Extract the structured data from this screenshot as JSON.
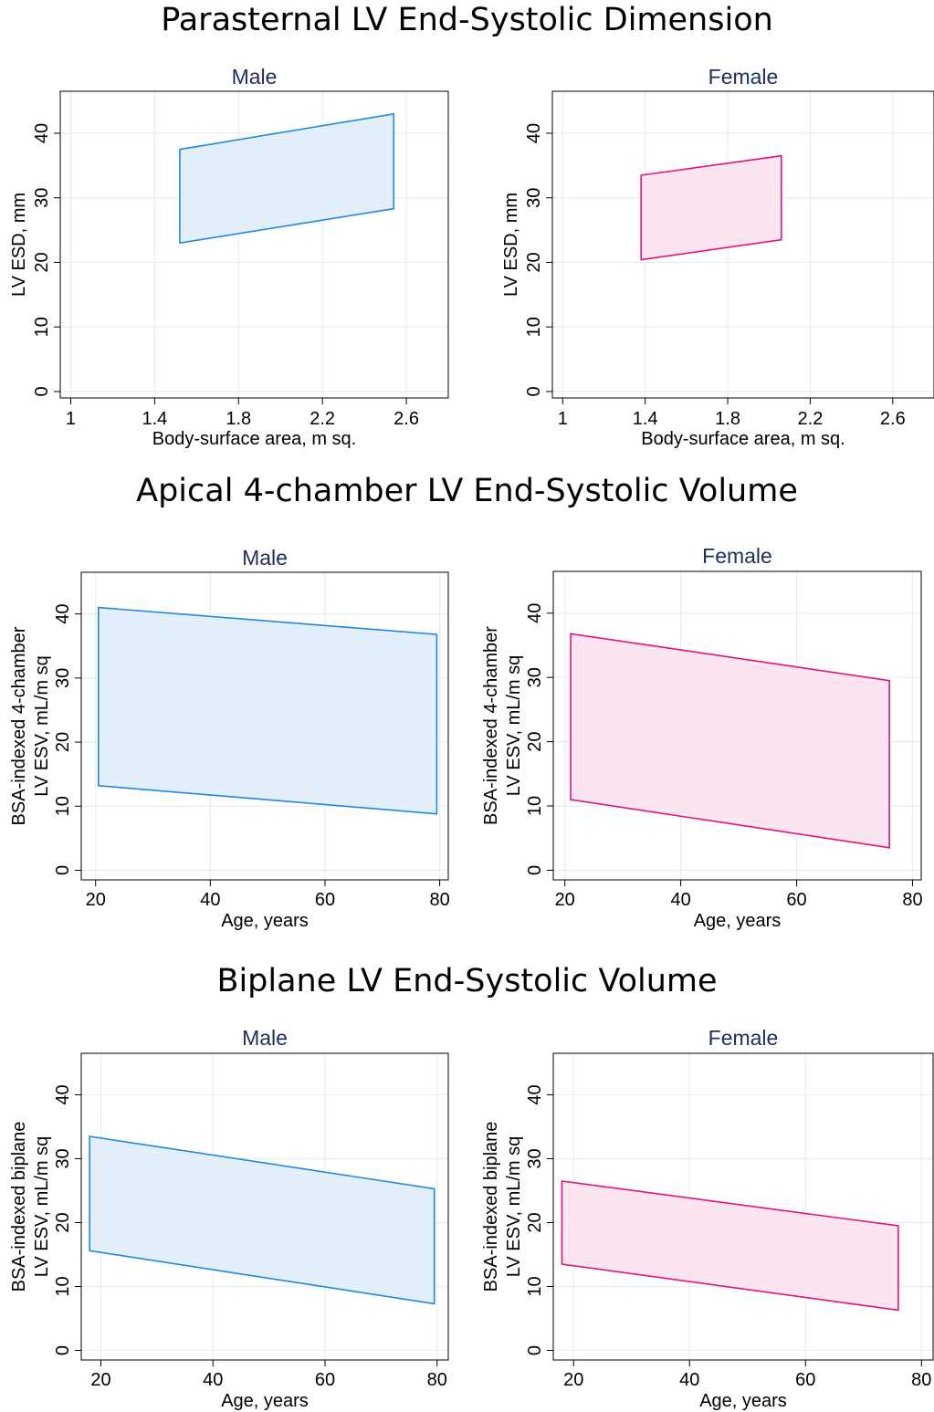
{
  "section_titles": [
    "Parasternal LV End-Systolic Dimension",
    "Apical 4-chamber LV End-Systolic Volume",
    "Biplane LV End-Systolic Volume"
  ],
  "colors": {
    "male_stroke": "#1e88e5",
    "male_fill": "#e3f0fc",
    "female_stroke": "#e0157a",
    "female_fill": "#fde4f1",
    "panel_title": "#1f2d5a",
    "grid": "#e7eef2"
  },
  "chart_data": [
    {
      "type": "area",
      "title": "Male",
      "xlabel": "Body-surface area, m sq.",
      "ylabel": [
        "LV ESD, mm"
      ],
      "xlim": [
        0.95,
        2.8
      ],
      "ylim": [
        -1,
        46.5
      ],
      "xticks": [
        1,
        1.4,
        1.8,
        2.2,
        2.6
      ],
      "xtick_labels": [
        "1",
        "1.4",
        "1.8",
        "2.2",
        "2.6"
      ],
      "yticks": [
        0,
        10,
        20,
        30,
        40
      ],
      "ytick_labels": [
        "0",
        "10",
        "20",
        "30",
        "40"
      ],
      "x": [
        1.52,
        2.54
      ],
      "series": [
        {
          "upper": [
            37.5,
            43.0
          ],
          "lower": [
            23.0,
            28.3
          ]
        }
      ],
      "color": "male"
    },
    {
      "type": "area",
      "title": "Female",
      "xlabel": "Body-surface area, m sq.",
      "ylabel": [
        "LV ESD, mm"
      ],
      "xlim": [
        0.95,
        2.8
      ],
      "ylim": [
        -1,
        46.5
      ],
      "xticks": [
        1,
        1.4,
        1.8,
        2.2,
        2.6
      ],
      "xtick_labels": [
        "1",
        "1.4",
        "1.8",
        "2.2",
        "2.6"
      ],
      "yticks": [
        0,
        10,
        20,
        30,
        40
      ],
      "ytick_labels": [
        "0",
        "10",
        "20",
        "30",
        "40"
      ],
      "x": [
        1.38,
        2.06
      ],
      "series": [
        {
          "upper": [
            33.5,
            36.5
          ],
          "lower": [
            20.4,
            23.5
          ]
        }
      ],
      "color": "female"
    },
    {
      "type": "area",
      "title": "Male",
      "xlabel": "Age, years",
      "ylabel": [
        "BSA-indexed 4-chamber",
        "LV ESV, mL/m sq"
      ],
      "xlim": [
        17.5,
        81.5
      ],
      "ylim": [
        -1.5,
        46.5
      ],
      "xticks": [
        20,
        40,
        60,
        80
      ],
      "xtick_labels": [
        "20",
        "40",
        "60",
        "80"
      ],
      "yticks": [
        0,
        10,
        20,
        30,
        40
      ],
      "ytick_labels": [
        "0",
        "10",
        "20",
        "30",
        "40"
      ],
      "x": [
        20.5,
        79.5
      ],
      "series": [
        {
          "upper": [
            41.0,
            36.8
          ],
          "lower": [
            13.2,
            8.8
          ]
        }
      ],
      "color": "male"
    },
    {
      "type": "area",
      "title": "Female",
      "xlabel": "Age, years",
      "ylabel": [
        "BSA-indexed 4-chamber",
        "LV ESV, mL/m sq"
      ],
      "xlim": [
        18,
        81.5
      ],
      "ylim": [
        -1.5,
        46.5
      ],
      "xticks": [
        20,
        40,
        60,
        80
      ],
      "xtick_labels": [
        "20",
        "40",
        "60",
        "80"
      ],
      "yticks": [
        0,
        10,
        20,
        30,
        40
      ],
      "ytick_labels": [
        "0",
        "10",
        "20",
        "30",
        "40"
      ],
      "x": [
        21.0,
        76.0
      ],
      "series": [
        {
          "upper": [
            36.8,
            29.5
          ],
          "lower": [
            11.0,
            3.5
          ]
        }
      ],
      "color": "female"
    },
    {
      "type": "area",
      "title": "Male",
      "xlabel": "Age, years",
      "ylabel": [
        "BSA-indexed biplane",
        "LV ESV, mL/m sq"
      ],
      "xlim": [
        16.5,
        82
      ],
      "ylim": [
        -1.5,
        46.5
      ],
      "xticks": [
        20,
        40,
        60,
        80
      ],
      "xtick_labels": [
        "20",
        "40",
        "60",
        "80"
      ],
      "yticks": [
        0,
        10,
        20,
        30,
        40
      ],
      "ytick_labels": [
        "0",
        "10",
        "20",
        "30",
        "40"
      ],
      "x": [
        18.0,
        79.5
      ],
      "series": [
        {
          "upper": [
            33.5,
            25.3
          ],
          "lower": [
            15.6,
            7.3
          ]
        }
      ],
      "color": "male"
    },
    {
      "type": "area",
      "title": "Female",
      "xlabel": "Age, years",
      "ylabel": [
        "BSA-indexed biplane",
        "LV ESV, mL/m sq"
      ],
      "xlim": [
        16.5,
        82
      ],
      "ylim": [
        -1.5,
        46.5
      ],
      "xticks": [
        20,
        40,
        60,
        80
      ],
      "xtick_labels": [
        "20",
        "40",
        "60",
        "80"
      ],
      "yticks": [
        0,
        10,
        20,
        30,
        40
      ],
      "ytick_labels": [
        "0",
        "10",
        "20",
        "30",
        "40"
      ],
      "x": [
        18.0,
        76.0
      ],
      "series": [
        {
          "upper": [
            26.5,
            19.5
          ],
          "lower": [
            13.5,
            6.3
          ]
        }
      ],
      "color": "female"
    }
  ]
}
